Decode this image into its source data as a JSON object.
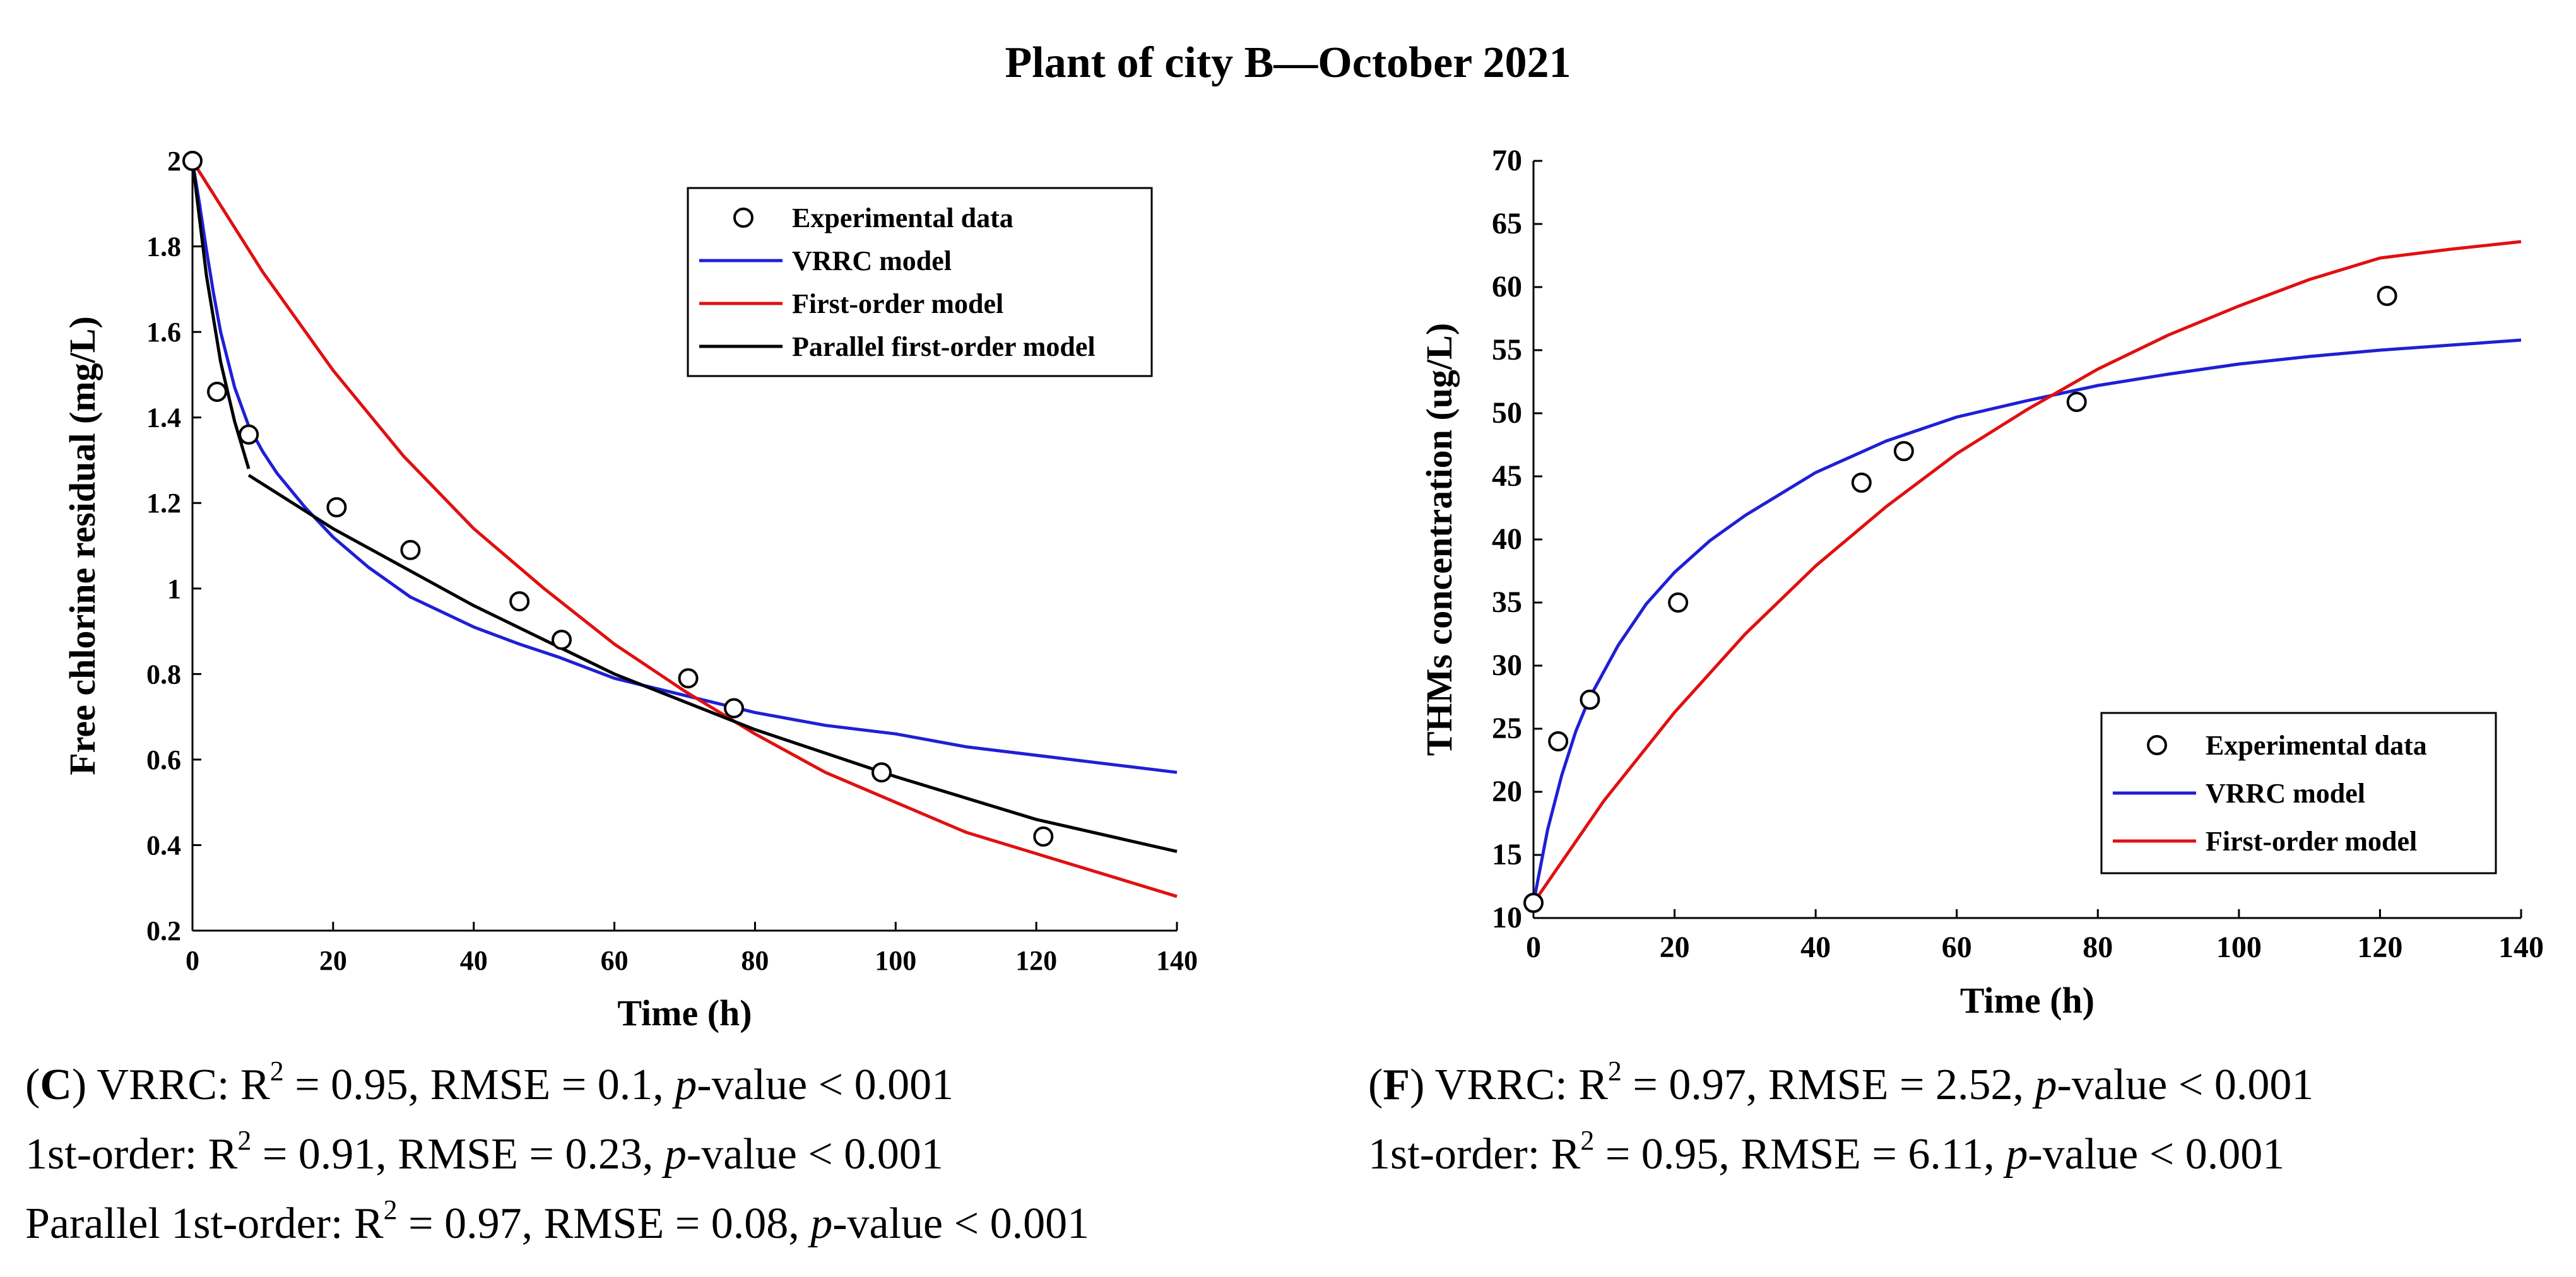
{
  "figure_title": "Plant of city B—October 2021",
  "chart_data": [
    {
      "type": "line",
      "panel": "C",
      "title": "",
      "xlabel": "Time (h)",
      "ylabel": "Free chlorine residual (mg/L)",
      "xlim": [
        0,
        140
      ],
      "ylim": [
        0.2,
        2.0
      ],
      "xticks": [
        0,
        20,
        40,
        60,
        80,
        100,
        120,
        140
      ],
      "yticks": [
        0.2,
        0.4,
        0.6,
        0.8,
        1,
        1.2,
        1.4,
        1.6,
        1.8,
        2
      ],
      "grid": false,
      "legend_position": "top-right",
      "series": [
        {
          "name": "Experimental data",
          "kind": "scatter",
          "color": "#000000",
          "x": [
            0,
            3.5,
            8,
            20.5,
            31,
            46.5,
            52.5,
            70.5,
            77,
            98,
            121
          ],
          "y": [
            2.0,
            1.46,
            1.36,
            1.19,
            1.09,
            0.97,
            0.88,
            0.79,
            0.72,
            0.57,
            0.42
          ]
        },
        {
          "name": "VRRC model",
          "kind": "line",
          "color": "#1f1fd6",
          "x": [
            0,
            1,
            2,
            3,
            4,
            6,
            8,
            10,
            12,
            16,
            20,
            25,
            31,
            40,
            46.5,
            52,
            60,
            70,
            80,
            90,
            100,
            110,
            120,
            130,
            140
          ],
          "y": [
            2.0,
            1.9,
            1.79,
            1.69,
            1.6,
            1.47,
            1.38,
            1.32,
            1.27,
            1.19,
            1.12,
            1.05,
            0.98,
            0.91,
            0.87,
            0.84,
            0.79,
            0.75,
            0.71,
            0.68,
            0.66,
            0.63,
            0.61,
            0.59,
            0.57
          ]
        },
        {
          "name": "First-order model",
          "kind": "line",
          "color": "#e01010",
          "x": [
            0,
            10,
            20,
            30,
            40,
            50,
            60,
            70,
            80,
            90,
            100,
            110,
            120,
            130,
            140
          ],
          "y": [
            2.0,
            1.74,
            1.51,
            1.31,
            1.14,
            1.0,
            0.87,
            0.76,
            0.66,
            0.57,
            0.5,
            0.43,
            0.38,
            0.33,
            0.28
          ]
        },
        {
          "name": "Parallel first-order model",
          "kind": "line",
          "color": "#000000",
          "x": [
            0,
            2,
            4,
            6,
            8
          ],
          "y": [
            2.0,
            1.73,
            1.53,
            1.39,
            1.28
          ]
        },
        {
          "name": "",
          "kind": "line",
          "color": "#000000",
          "x": [
            8,
            20,
            40,
            60,
            80,
            100,
            120,
            140
          ],
          "y": [
            1.265,
            1.14,
            0.96,
            0.8,
            0.67,
            0.56,
            0.46,
            0.385
          ]
        }
      ]
    },
    {
      "type": "line",
      "panel": "F",
      "title": "",
      "xlabel": "Time (h)",
      "ylabel": "THMs concentration (ug/L)",
      "xlim": [
        0,
        140
      ],
      "ylim": [
        10,
        70
      ],
      "xticks": [
        0,
        20,
        40,
        60,
        80,
        100,
        120,
        140
      ],
      "yticks": [
        10,
        15,
        20,
        25,
        30,
        35,
        40,
        45,
        50,
        55,
        60,
        65,
        70
      ],
      "grid": false,
      "legend_position": "bottom-right",
      "series": [
        {
          "name": "Experimental data",
          "kind": "scatter",
          "color": "#000000",
          "x": [
            0,
            3.5,
            8,
            20.5,
            46.5,
            52.5,
            77,
            121
          ],
          "y": [
            11.2,
            24.0,
            27.3,
            35.0,
            44.5,
            47.0,
            50.9,
            59.3
          ]
        },
        {
          "name": "VRRC model",
          "kind": "line",
          "color": "#1f1fd6",
          "x": [
            0,
            2,
            4,
            6,
            8,
            12,
            16,
            20,
            25,
            30,
            40,
            50,
            60,
            70,
            80,
            90,
            100,
            110,
            120,
            130,
            140
          ],
          "y": [
            11.2,
            17.0,
            21.3,
            24.8,
            27.5,
            31.6,
            34.9,
            37.4,
            39.9,
            41.9,
            45.3,
            47.8,
            49.7,
            51.0,
            52.2,
            53.1,
            53.9,
            54.5,
            55.0,
            55.4,
            55.8
          ]
        },
        {
          "name": "First-order model",
          "kind": "line",
          "color": "#e01010",
          "x": [
            0,
            10,
            20,
            30,
            40,
            50,
            60,
            70,
            80,
            90,
            100,
            110,
            120,
            130,
            140
          ],
          "y": [
            11.2,
            19.3,
            26.3,
            32.5,
            37.9,
            42.6,
            46.8,
            50.3,
            53.5,
            56.2,
            58.5,
            60.6,
            62.3,
            63.0,
            63.6
          ]
        }
      ]
    }
  ],
  "captions": {
    "left": {
      "line1": {
        "label": "C",
        "text": ") VRRC: R",
        "sup": "2",
        "rest": " = 0.95, RMSE = 0.1, ",
        "p": "p",
        "tail": "-value < 0.001"
      },
      "line2": {
        "text": "1st-order: R",
        "sup": "2",
        "rest": " = 0.91, RMSE = 0.23, ",
        "p": "p",
        "tail": "-value < 0.001"
      },
      "line3": {
        "text": "Parallel 1st-order: R",
        "sup": "2",
        "rest": " = 0.97, RMSE = 0.08, ",
        "p": "p",
        "tail": "-value < 0.001"
      }
    },
    "right": {
      "line1": {
        "label": "F",
        "text": ") VRRC: R",
        "sup": "2",
        "rest": " = 0.97, RMSE = 2.52, ",
        "p": "p",
        "tail": "-value < 0.001"
      },
      "line2": {
        "text": "1st-order: R",
        "sup": "2",
        "rest": " = 0.95, RMSE = 6.11, ",
        "p": "p",
        "tail": "-value < 0.001"
      }
    }
  }
}
